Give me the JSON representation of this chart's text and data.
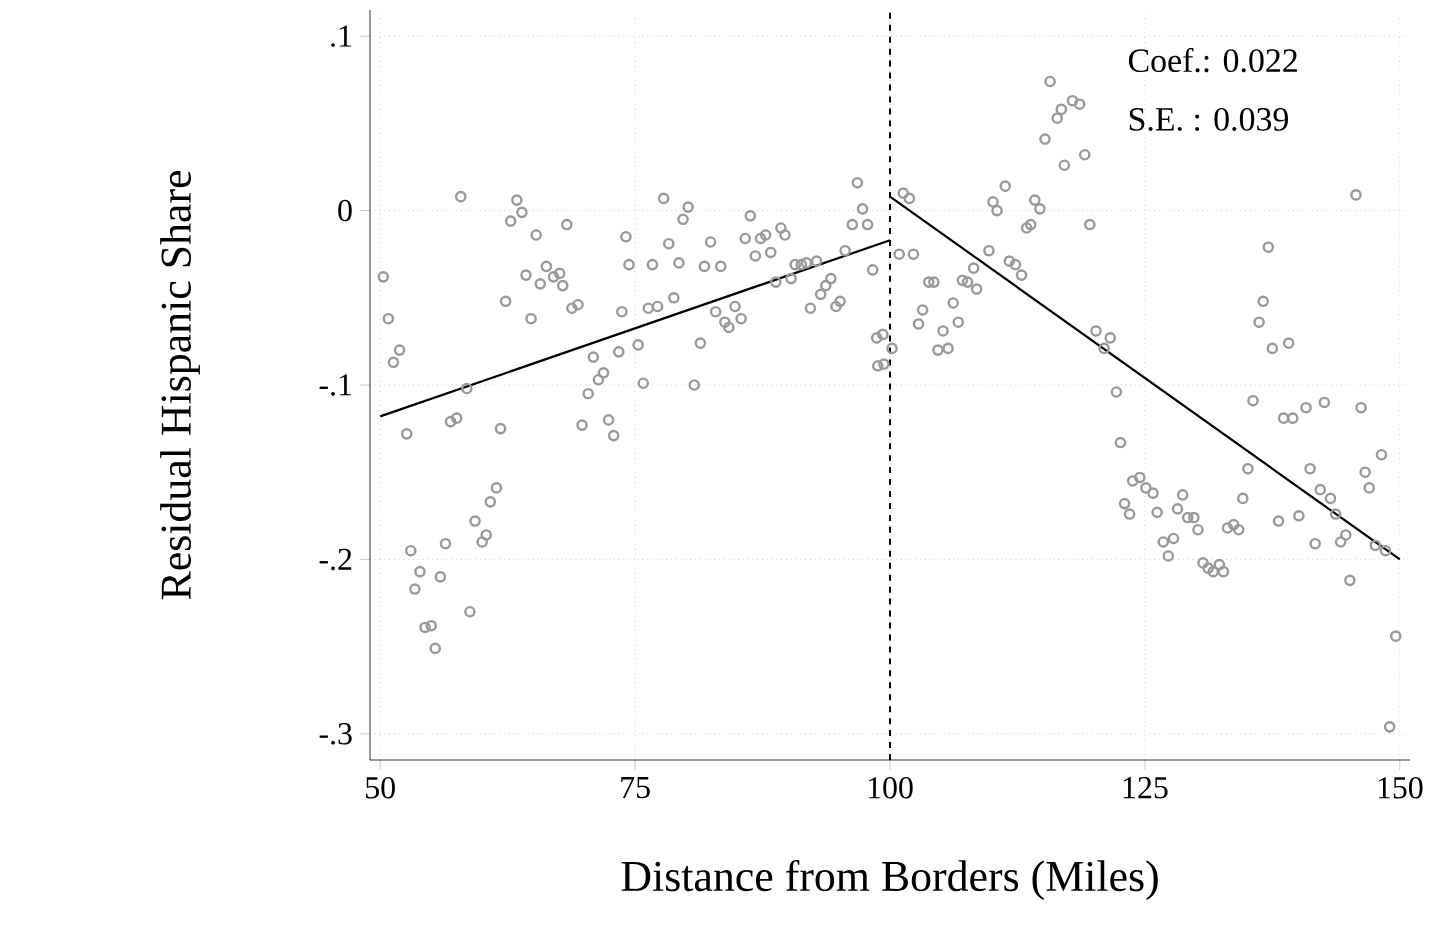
{
  "chart_data": {
    "type": "scatter",
    "xlabel": "Distance from Borders (Miles)",
    "ylabel": "Residual Hispanic Share",
    "xlim": [
      49,
      151
    ],
    "ylim": [
      -0.315,
      0.115
    ],
    "xticks": [
      50,
      75,
      100,
      125,
      150
    ],
    "yticks": [
      {
        "value": 0.1,
        "label": ".1"
      },
      0,
      {
        "value": -0.1,
        "label": "-.1"
      },
      {
        "value": -0.2,
        "label": "-.2"
      },
      {
        "value": -0.3,
        "label": "-.3"
      }
    ],
    "grid": true,
    "marker": "circle",
    "annotations": [
      "Coef.: 0.022",
      "S.E.  : 0.039"
    ],
    "ref_lines": [
      {
        "axis": "x",
        "value": 100,
        "color": "#000000",
        "line_style": "dashed"
      }
    ],
    "series": [
      {
        "color": "#999999",
        "x": [
          50.3,
          50.8,
          51.3,
          51.9,
          52.6,
          53.0,
          53.4,
          53.9,
          54.4,
          55.0,
          55.4,
          55.9,
          56.4,
          56.9,
          57.5,
          57.9,
          58.5,
          58.8,
          59.3,
          60.0,
          60.4,
          60.8,
          61.4,
          61.8,
          62.3,
          62.8,
          63.4,
          63.9,
          64.3,
          64.8,
          65.3,
          65.7,
          66.3,
          67.0,
          67.6,
          67.9,
          68.3,
          68.8,
          69.4,
          69.8,
          70.4,
          70.9,
          71.4,
          71.9,
          72.4,
          72.9,
          73.4,
          73.7,
          74.1,
          74.4,
          75.3,
          75.8,
          76.3,
          76.7,
          77.2,
          77.8,
          78.3,
          78.8,
          79.3,
          79.7,
          80.2,
          80.8,
          81.4,
          81.8,
          82.4,
          82.9,
          83.4,
          83.8,
          84.2,
          84.8,
          85.4,
          85.8,
          86.3,
          86.8,
          87.3,
          87.8,
          88.3,
          88.8,
          89.3,
          89.7,
          90.3,
          90.7,
          91.3,
          91.8,
          92.2,
          92.8,
          93.2,
          93.7,
          94.2,
          94.7,
          95.1,
          95.6,
          96.3,
          96.8,
          97.3,
          97.8,
          98.3,
          98.7,
          98.8,
          99.3,
          99.4,
          100.2,
          100.9,
          101.3,
          101.9,
          102.3,
          102.8,
          103.2,
          103.8,
          104.3,
          104.7,
          105.2,
          105.7,
          106.2,
          106.7,
          107.1,
          107.6,
          108.2,
          108.5,
          109.7,
          110.1,
          110.5,
          111.3,
          111.7,
          112.3,
          112.9,
          113.4,
          113.8,
          114.2,
          114.7,
          115.2,
          115.7,
          116.4,
          116.8,
          117.1,
          117.9,
          118.6,
          119.1,
          119.6,
          120.2,
          121.0,
          121.6,
          122.2,
          122.6,
          123.0,
          123.5,
          123.8,
          124.5,
          125.1,
          125.8,
          126.2,
          126.8,
          127.3,
          127.8,
          128.2,
          128.7,
          129.2,
          129.8,
          130.2,
          130.7,
          131.2,
          131.7,
          132.3,
          132.7,
          133.1,
          133.7,
          134.2,
          134.6,
          135.1,
          135.6,
          136.2,
          136.6,
          137.1,
          137.5,
          138.1,
          138.6,
          139.1,
          139.5,
          140.1,
          140.8,
          141.2,
          141.7,
          142.2,
          142.6,
          143.2,
          143.7,
          144.2,
          144.7,
          145.1,
          145.7,
          146.2,
          146.6,
          147.0,
          147.6,
          148.2,
          148.6,
          149.0,
          149.6
        ],
        "values": [
          -0.038,
          -0.062,
          -0.087,
          -0.08,
          -0.128,
          -0.195,
          -0.217,
          -0.207,
          -0.239,
          -0.238,
          -0.251,
          -0.21,
          -0.191,
          -0.121,
          -0.119,
          0.008,
          -0.102,
          -0.23,
          -0.178,
          -0.19,
          -0.186,
          -0.167,
          -0.159,
          -0.125,
          -0.052,
          -0.006,
          0.006,
          -0.001,
          -0.037,
          -0.062,
          -0.014,
          -0.042,
          -0.032,
          -0.038,
          -0.036,
          -0.043,
          -0.008,
          -0.056,
          -0.054,
          -0.123,
          -0.105,
          -0.084,
          -0.097,
          -0.093,
          -0.12,
          -0.129,
          -0.081,
          -0.058,
          -0.015,
          -0.031,
          -0.077,
          -0.099,
          -0.056,
          -0.031,
          -0.055,
          0.007,
          -0.019,
          -0.05,
          -0.03,
          -0.005,
          0.002,
          -0.1,
          -0.076,
          -0.032,
          -0.018,
          -0.058,
          -0.032,
          -0.064,
          -0.067,
          -0.055,
          -0.062,
          -0.016,
          -0.003,
          -0.026,
          -0.016,
          -0.014,
          -0.024,
          -0.041,
          -0.01,
          -0.014,
          -0.039,
          -0.031,
          -0.031,
          -0.03,
          -0.056,
          -0.029,
          -0.048,
          -0.043,
          -0.039,
          -0.055,
          -0.052,
          -0.023,
          -0.008,
          0.016,
          0.001,
          -0.008,
          -0.034,
          -0.073,
          -0.089,
          -0.071,
          -0.088,
          -0.079,
          -0.025,
          0.01,
          0.007,
          -0.025,
          -0.065,
          -0.057,
          -0.041,
          -0.041,
          -0.08,
          -0.069,
          -0.079,
          -0.053,
          -0.064,
          -0.04,
          -0.041,
          -0.033,
          -0.045,
          -0.023,
          0.005,
          0.0,
          0.014,
          -0.029,
          -0.031,
          -0.037,
          -0.01,
          -0.008,
          0.006,
          0.001,
          0.041,
          0.074,
          0.053,
          0.058,
          0.026,
          0.063,
          0.061,
          0.032,
          -0.008,
          -0.069,
          -0.079,
          -0.073,
          -0.104,
          -0.133,
          -0.168,
          -0.174,
          -0.155,
          -0.153,
          -0.159,
          -0.162,
          -0.173,
          -0.19,
          -0.198,
          -0.188,
          -0.171,
          -0.163,
          -0.176,
          -0.176,
          -0.183,
          -0.202,
          -0.205,
          -0.207,
          -0.203,
          -0.207,
          -0.182,
          -0.18,
          -0.183,
          -0.165,
          -0.148,
          -0.109,
          -0.064,
          -0.052,
          -0.021,
          -0.079,
          -0.178,
          -0.119,
          -0.076,
          -0.119,
          -0.175,
          -0.113,
          -0.148,
          -0.191,
          -0.16,
          -0.11,
          -0.165,
          -0.174,
          -0.19,
          -0.186,
          -0.212,
          0.009,
          -0.113,
          -0.15,
          -0.159,
          -0.192,
          -0.14,
          -0.195,
          -0.296,
          -0.244
        ]
      },
      {
        "type": "line",
        "marker": "none",
        "color": "#000000",
        "x": [
          50,
          100
        ],
        "values": [
          -0.118,
          -0.017
        ]
      },
      {
        "type": "line",
        "marker": "none",
        "color": "#000000",
        "x": [
          100,
          150
        ],
        "values": [
          0.008,
          -0.2
        ]
      }
    ]
  }
}
